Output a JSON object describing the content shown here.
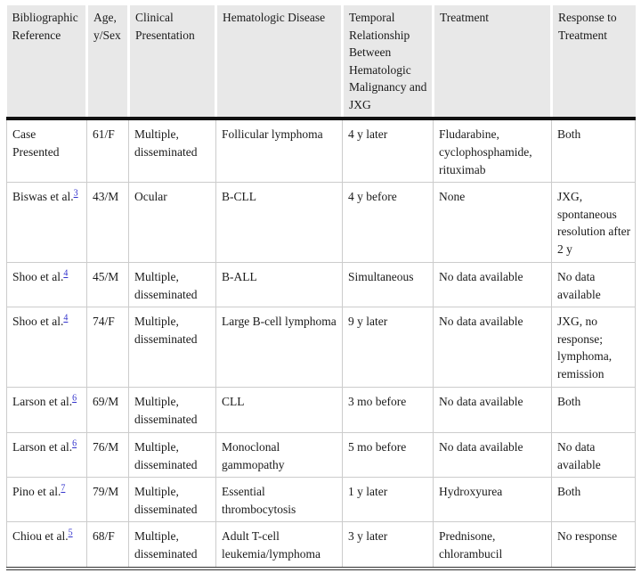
{
  "colors": {
    "header_background": "#e8e8e8",
    "heavy_rule": "#111111",
    "light_rule": "#cccccc",
    "citation_link": "#3333cc",
    "text": "#1a1a1a"
  },
  "table": {
    "column_keys": [
      "bibliographic-reference",
      "age-sex",
      "clinical-presentation",
      "hematologic-disease",
      "temporal-relationship",
      "treatment",
      "response-to-treatment"
    ],
    "headers": [
      "Bibliographic Reference",
      "Age, y/Sex",
      "Clinical Presentation",
      "Hematologic Disease",
      "Temporal Relationship Between Hematologic Malignancy and JXG",
      "Treatment",
      "Response to Treatment"
    ],
    "rows": [
      {
        "cells": [
          "Case Presented",
          "61/F",
          "Multiple, disseminated",
          "Follicular lymphoma",
          "4 y later",
          "Fludarabine, cyclophosphamide, rituximab",
          "Both"
        ],
        "ref": null
      },
      {
        "cells": [
          "Biswas et al.",
          "43/M",
          "Ocular",
          "B-CLL",
          "4 y before",
          "None",
          "JXG, spontaneous resolution after 2 y"
        ],
        "ref": "3"
      },
      {
        "cells": [
          "Shoo et al.",
          "45/M",
          "Multiple, disseminated",
          "B-ALL",
          "Simultaneous",
          "No data available",
          "No data available"
        ],
        "ref": "4"
      },
      {
        "cells": [
          "Shoo et al.",
          "74/F",
          "Multiple, disseminated",
          "Large B-cell lymphoma",
          "9 y later",
          "No data available",
          "JXG, no response; lymphoma, remission"
        ],
        "ref": "4"
      },
      {
        "cells": [
          "Larson et al.",
          "69/M",
          "Multiple, disseminated",
          "CLL",
          "3 mo before",
          "No data available",
          "Both"
        ],
        "ref": "6"
      },
      {
        "cells": [
          "Larson et al.",
          "76/M",
          "Multiple, disseminated",
          "Monoclonal gammopathy",
          "5 mo before",
          "No data available",
          "No data available"
        ],
        "ref": "6"
      },
      {
        "cells": [
          "Pino et al.",
          "79/M",
          "Multiple, disseminated",
          "Essential thrombocytosis",
          "1 y later",
          "Hydroxyurea",
          "Both"
        ],
        "ref": "7"
      },
      {
        "cells": [
          "Chiou et al.",
          "68/F",
          "Multiple, disseminated",
          "Adult T-cell leukemia/lymphoma",
          "3 y later",
          "Prednisone, chlorambucil",
          "No response"
        ],
        "ref": "5"
      }
    ]
  }
}
